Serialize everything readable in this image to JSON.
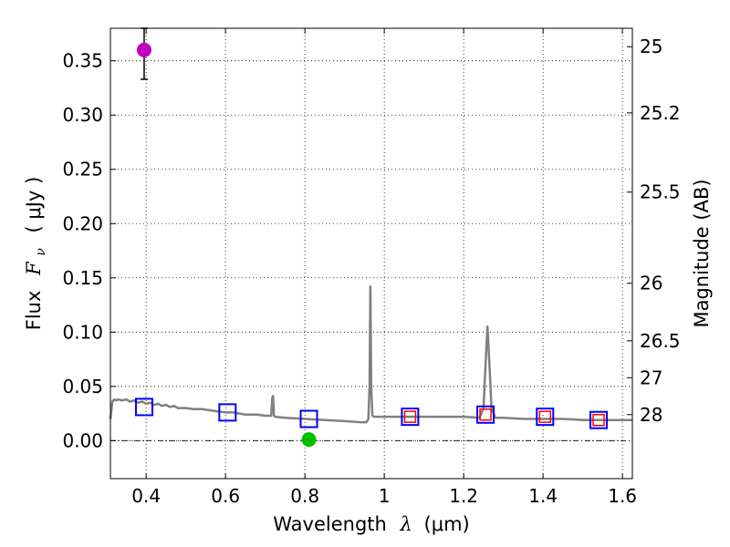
{
  "chart_data": {
    "type": "scatter",
    "xlabel_prefix": "Wavelength",
    "xlabel_symbol": "λ",
    "xlabel_unit": "(μm)",
    "ylabel_prefix": "Flux",
    "ylabel_symbol": "F",
    "ylabel_subscript": "ν",
    "ylabel_unit": "( μJy )",
    "y2label": "Magnitude (AB)",
    "xlim": [
      0.31,
      1.625
    ],
    "ylim": [
      -0.035,
      0.38
    ],
    "x_ticks": [
      0.4,
      0.6,
      0.8,
      1.0,
      1.2,
      1.4,
      1.6
    ],
    "x_tick_labels": [
      "0.4",
      "0.6",
      "0.8",
      "1",
      "1.2",
      "1.4",
      "1.6"
    ],
    "y_ticks": [
      0.0,
      0.05,
      0.1,
      0.15,
      0.2,
      0.25,
      0.3,
      0.35
    ],
    "y_tick_labels": [
      "0.00",
      "0.05",
      "0.10",
      "0.15",
      "0.20",
      "0.25",
      "0.30",
      "0.35"
    ],
    "mag_ticks": [
      {
        "label": "25",
        "flux": 0.363
      },
      {
        "label": "25.2",
        "flux": 0.302
      },
      {
        "label": "25.5",
        "flux": 0.229
      },
      {
        "label": "26",
        "flux": 0.145
      },
      {
        "label": "26.5",
        "flux": 0.092
      },
      {
        "label": "27",
        "flux": 0.058
      },
      {
        "label": "28",
        "flux": 0.024
      }
    ],
    "grid": true,
    "series": [
      {
        "name": "model spectrum",
        "kind": "line",
        "color": "#808080",
        "x": [
          0.31,
          0.315,
          0.32,
          0.325,
          0.33,
          0.34,
          0.35,
          0.36,
          0.37,
          0.38,
          0.39,
          0.4,
          0.41,
          0.42,
          0.43,
          0.44,
          0.45,
          0.46,
          0.47,
          0.48,
          0.5,
          0.52,
          0.54,
          0.56,
          0.58,
          0.6,
          0.62,
          0.65,
          0.68,
          0.7,
          0.715,
          0.718,
          0.72,
          0.722,
          0.725,
          0.75,
          0.8,
          0.85,
          0.9,
          0.94,
          0.955,
          0.96,
          0.963,
          0.965,
          0.967,
          0.97,
          0.975,
          1.0,
          1.05,
          1.1,
          1.15,
          1.2,
          1.24,
          1.25,
          1.255,
          1.26,
          1.265,
          1.27,
          1.28,
          1.3,
          1.35,
          1.4,
          1.45,
          1.5,
          1.55,
          1.6,
          1.625
        ],
        "y": [
          0.02,
          0.036,
          0.038,
          0.037,
          0.038,
          0.037,
          0.038,
          0.036,
          0.037,
          0.035,
          0.036,
          0.034,
          0.035,
          0.033,
          0.034,
          0.032,
          0.033,
          0.031,
          0.032,
          0.03,
          0.03,
          0.029,
          0.029,
          0.028,
          0.027,
          0.026,
          0.026,
          0.024,
          0.024,
          0.023,
          0.023,
          0.04,
          0.041,
          0.023,
          0.022,
          0.021,
          0.02,
          0.019,
          0.018,
          0.017,
          0.017,
          0.02,
          0.05,
          0.142,
          0.05,
          0.023,
          0.022,
          0.022,
          0.022,
          0.022,
          0.022,
          0.022,
          0.021,
          0.03,
          0.07,
          0.105,
          0.07,
          0.03,
          0.021,
          0.021,
          0.02,
          0.02,
          0.02,
          0.019,
          0.019,
          0.019,
          0.019
        ]
      },
      {
        "name": "model photometry",
        "kind": "open-square",
        "color": "#0000ff",
        "x": [
          0.395,
          0.605,
          0.81,
          1.065,
          1.255,
          1.405,
          1.54
        ],
        "y": [
          0.031,
          0.026,
          0.02,
          0.022,
          0.024,
          0.022,
          0.019
        ]
      },
      {
        "name": "observed photometry",
        "kind": "open-square",
        "color": "#ff0000",
        "x": [
          1.065,
          1.255,
          1.405,
          1.54
        ],
        "y": [
          0.022,
          0.024,
          0.022,
          0.019
        ]
      },
      {
        "name": "detection",
        "kind": "filled-circle",
        "color": "#bf00bf",
        "x": [
          0.395
        ],
        "y": [
          0.36
        ],
        "yerr_low": [
          0.333
        ],
        "yerr_high": [
          0.38
        ]
      },
      {
        "name": "upper-limit point",
        "kind": "filled-circle",
        "color": "#00bf00",
        "x": [
          0.81
        ],
        "y": [
          0.001
        ],
        "yerr_low": [
          -0.003
        ],
        "yerr_high": [
          0.005
        ]
      }
    ],
    "zero_line": 0.0,
    "colors": {
      "spectrum": "#808080",
      "model_square": "#0000ff",
      "obs_square": "#ff0000",
      "detection": "#bf00bf",
      "upper": "#00bf00"
    }
  }
}
